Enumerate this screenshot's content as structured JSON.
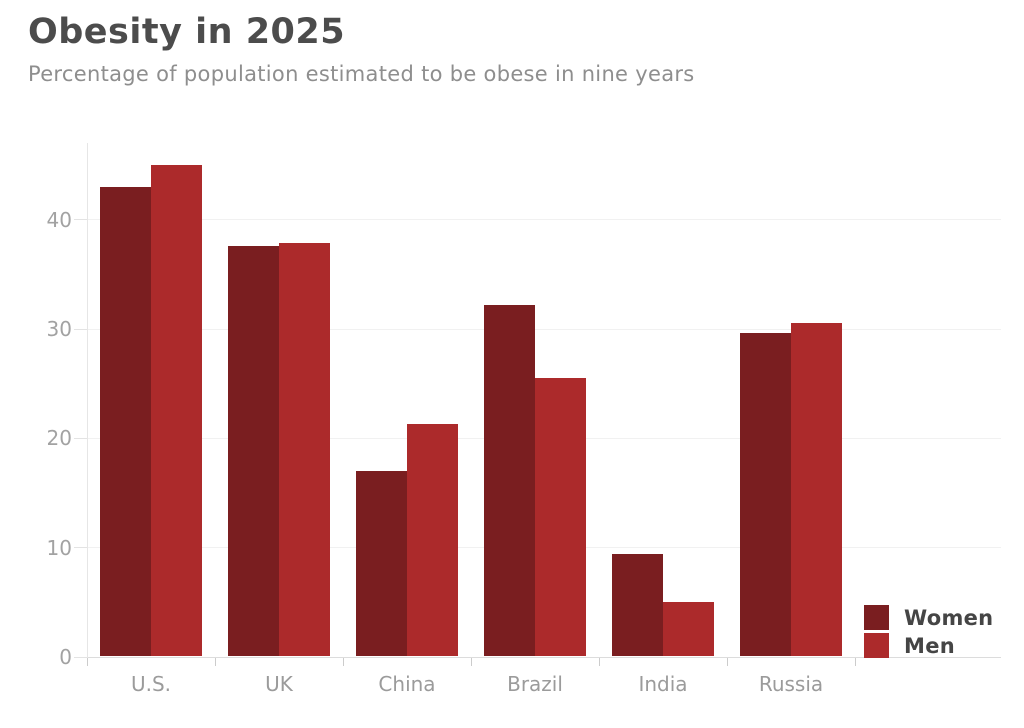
{
  "header": {
    "title": "Obesity in 2025",
    "subtitle": "Percentage of population estimated to be obese in nine years"
  },
  "chart_data": {
    "type": "bar",
    "title": "Obesity in 2025",
    "subtitle": "Percentage of population estimated to be obese in nine years",
    "categories": [
      "U.S.",
      "UK",
      "China",
      "Brazil",
      "India",
      "Russia"
    ],
    "series": [
      {
        "name": "Women",
        "color": "#7a1e20",
        "values": [
          43,
          37.6,
          17,
          32.2,
          9.4,
          29.6
        ]
      },
      {
        "name": "Men",
        "color": "#ac2a2b",
        "values": [
          45,
          37.8,
          21.3,
          25.5,
          5,
          30.5
        ]
      }
    ],
    "xlabel": "",
    "ylabel": "",
    "ylim": [
      0,
      46
    ],
    "yticks": [
      0,
      10,
      20,
      30,
      40
    ],
    "grid": true,
    "legend_position": "inside-bottom-right"
  },
  "colors": {
    "women": "#7a1e20",
    "men": "#ac2a2b",
    "title_text": "#4c4c4c",
    "subtitle_text": "#8e8e8e",
    "axis_text": "#a2a2a2",
    "gridline": "#f1f1f1"
  }
}
